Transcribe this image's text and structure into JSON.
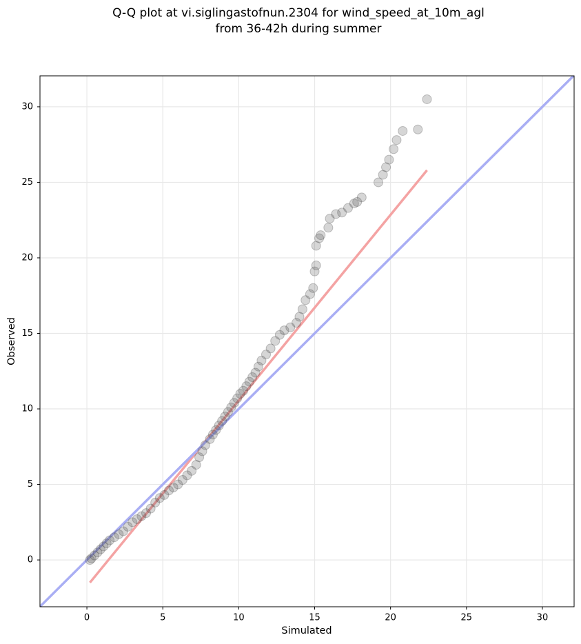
{
  "chart_data": {
    "type": "scatter",
    "title": [
      "Q-Q plot at vi.siglingastofnun.2304 for wind_speed_at_10m_agl",
      "from 36-42h during summer"
    ],
    "x_label": "Simulated",
    "y_label": "Observed",
    "xlim": [
      -3.09,
      32.09
    ],
    "ylim": [
      -3.1,
      32.05
    ],
    "xticks": [
      0,
      5,
      10,
      15,
      20,
      25,
      30
    ],
    "yticks": [
      0,
      5,
      10,
      15,
      20,
      25,
      30
    ],
    "grid": true,
    "x": [
      0.2,
      0.3,
      0.5,
      0.7,
      0.9,
      1.1,
      1.3,
      1.5,
      1.8,
      2.1,
      2.4,
      2.7,
      3.0,
      3.3,
      3.6,
      3.9,
      4.2,
      4.5,
      4.8,
      5.1,
      5.4,
      5.7,
      6.0,
      6.3,
      6.6,
      6.9,
      7.2,
      7.4,
      7.6,
      7.8,
      8.1,
      8.3,
      8.5,
      8.7,
      8.9,
      9.1,
      9.3,
      9.5,
      9.7,
      9.9,
      10.1,
      10.3,
      10.5,
      10.7,
      10.9,
      11.1,
      11.3,
      11.5,
      11.8,
      12.1,
      12.4,
      12.7,
      13.0,
      13.4,
      13.8,
      14.0,
      14.2,
      14.4,
      14.7,
      14.9,
      15.0,
      15.1,
      15.1,
      15.3,
      15.4,
      15.9,
      16.0,
      16.4,
      16.8,
      17.2,
      17.6,
      17.8,
      18.1,
      19.2,
      19.5,
      19.7,
      19.9,
      20.2,
      20.4,
      20.8,
      21.8,
      22.4
    ],
    "series": [
      {
        "name": "Observed",
        "color": "#444444",
        "values": [
          0,
          0.1,
          0.3,
          0.5,
          0.7,
          0.9,
          1.1,
          1.3,
          1.5,
          1.7,
          1.9,
          2.2,
          2.5,
          2.7,
          2.9,
          3.1,
          3.4,
          3.8,
          4.1,
          4.3,
          4.6,
          4.8,
          5.0,
          5.3,
          5.6,
          5.9,
          6.3,
          6.8,
          7.2,
          7.6,
          8.0,
          8.3,
          8.6,
          8.9,
          9.2,
          9.5,
          9.8,
          10.1,
          10.4,
          10.7,
          11.0,
          11.2,
          11.5,
          11.8,
          12.1,
          12.4,
          12.8,
          13.2,
          13.6,
          14.0,
          14.5,
          14.9,
          15.2,
          15.4,
          15.7,
          16.1,
          16.6,
          17.2,
          17.6,
          18.0,
          19.1,
          19.5,
          20.8,
          21.3,
          21.5,
          22.0,
          22.6,
          22.9,
          23.0,
          23.3,
          23.6,
          23.7,
          24.0,
          25.0,
          25.5,
          26.0,
          26.5,
          27.2,
          27.8,
          28.4,
          28.5,
          30.5
        ]
      }
    ],
    "lines": [
      {
        "color": "#f4a3a3",
        "x": [
          0.2,
          22.4
        ],
        "y": [
          -1.5,
          25.8
        ]
      },
      {
        "color": "#a9aef4",
        "x": [
          -3.09,
          32.09
        ],
        "y": [
          -3.09,
          32.09
        ]
      }
    ]
  }
}
